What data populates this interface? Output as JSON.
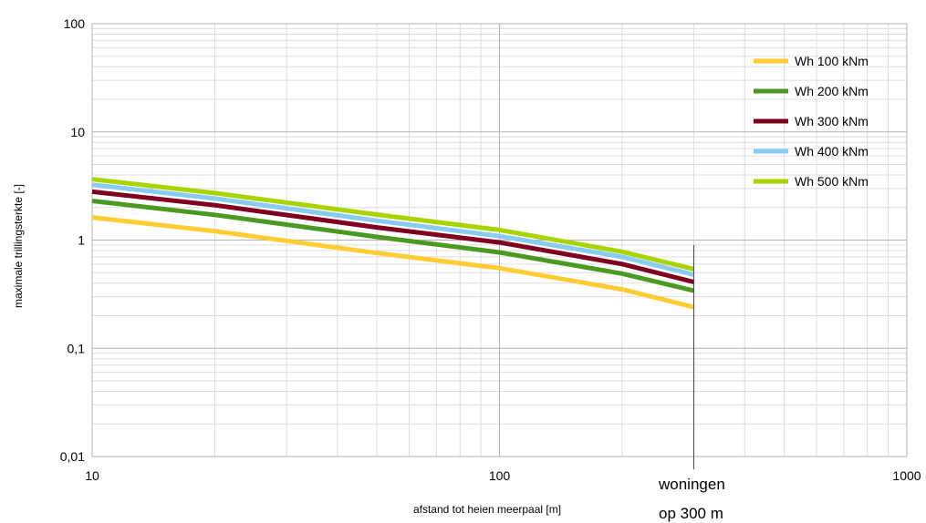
{
  "chart_data": {
    "type": "line",
    "xscale": "log",
    "yscale": "log",
    "xlim": [
      10,
      1000
    ],
    "ylim": [
      0.01,
      100
    ],
    "xlabel": "afstand tot heien meerpaal [m]",
    "ylabel": "maximale trillingsterkte [-]",
    "x_tick_labels": [
      "10",
      "100",
      "1000"
    ],
    "y_tick_labels": [
      "0,01",
      "0,1",
      "1",
      "10",
      "100"
    ],
    "grid": true,
    "legend_position": "top-right",
    "x": [
      10,
      20,
      50,
      100,
      200,
      300
    ],
    "series": [
      {
        "name": "Wh 100 kNm",
        "color": "#ffcc33",
        "values": [
          1.62,
          1.21,
          0.76,
          0.55,
          0.35,
          0.24
        ]
      },
      {
        "name": "Wh 200 kNm",
        "color": "#4a9a22",
        "values": [
          2.3,
          1.71,
          1.07,
          0.77,
          0.49,
          0.34
        ]
      },
      {
        "name": "Wh 300 kNm",
        "color": "#800020",
        "values": [
          2.8,
          2.1,
          1.31,
          0.95,
          0.6,
          0.41
        ]
      },
      {
        "name": "Wh 400 kNm",
        "color": "#88ccf4",
        "values": [
          3.25,
          2.42,
          1.51,
          1.09,
          0.7,
          0.48
        ]
      },
      {
        "name": "Wh 500 kNm",
        "color": "#aad400",
        "values": [
          3.65,
          2.72,
          1.72,
          1.24,
          0.78,
          0.54
        ]
      }
    ],
    "annotation": {
      "x": 300,
      "line1": "woningen",
      "line2": "op 300 m"
    }
  }
}
